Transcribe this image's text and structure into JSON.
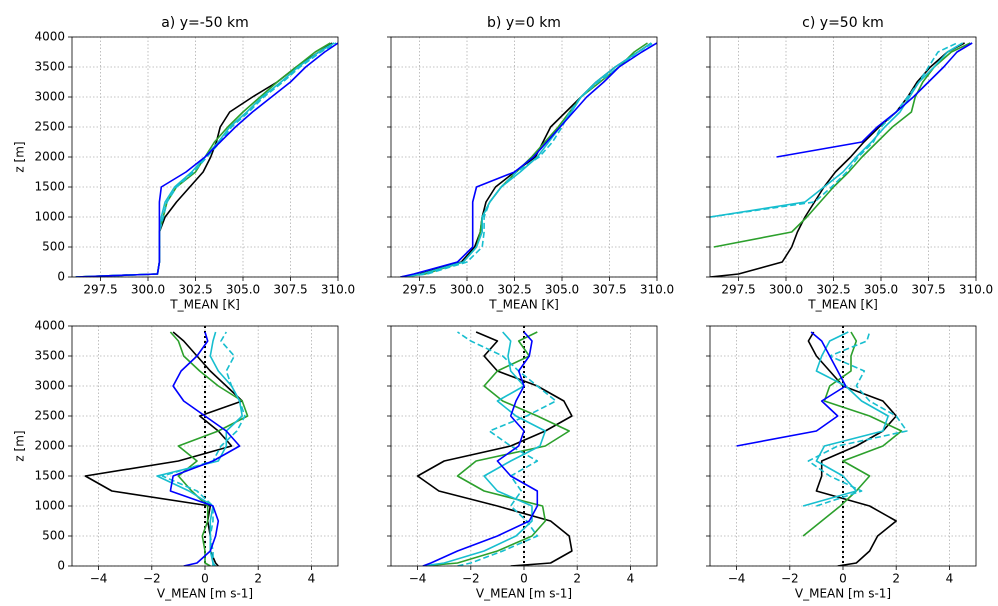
{
  "chart_data": [
    {
      "type": "line",
      "title": "a) y=-50 km",
      "xlabel": "T_MEAN [K]",
      "ylabel": "z [m]",
      "xlim": [
        296,
        310
      ],
      "xticks": [
        297.5,
        {
          "value": 300,
          "label": "300.0"
        },
        302.5,
        {
          "value": 305,
          "label": "305.0"
        },
        307.5,
        {
          "value": 310,
          "label": "310.0"
        }
      ],
      "ylim": [
        0,
        4000
      ],
      "yticks": [
        0,
        500,
        1000,
        1500,
        2000,
        2500,
        3000,
        3500,
        4000
      ],
      "show_ytick_labels": true,
      "grid": true,
      "y": [
        0,
        50,
        250,
        500,
        750,
        1000,
        1250,
        1500,
        1750,
        2000,
        2250,
        2500,
        2750,
        3000,
        3250,
        3500,
        3750,
        3900
      ],
      "series": [
        {
          "color": "#000000",
          "dash": false,
          "values": [
            296.2,
            300.5,
            300.6,
            300.6,
            300.6,
            300.9,
            301.5,
            302.2,
            302.9,
            303.3,
            303.6,
            303.8,
            304.3,
            305.5,
            306.8,
            307.8,
            309.0,
            309.7
          ]
        },
        {
          "color": "#2ca02c",
          "dash": false,
          "values": [
            296.2,
            300.5,
            300.6,
            300.6,
            300.6,
            300.8,
            301.0,
            301.5,
            302.5,
            303.0,
            303.5,
            304.2,
            305.0,
            305.9,
            306.8,
            307.8,
            308.8,
            309.6
          ]
        },
        {
          "color": "#17becf",
          "dash": false,
          "values": [
            296.2,
            300.5,
            300.6,
            300.6,
            300.6,
            300.7,
            300.9,
            301.4,
            302.3,
            303.0,
            303.7,
            304.3,
            305.2,
            306.0,
            307.0,
            307.9,
            309.0,
            309.8
          ]
        },
        {
          "color": "#17becf",
          "dash": true,
          "values": [
            296.2,
            300.5,
            300.6,
            300.6,
            300.6,
            300.8,
            301.0,
            301.5,
            302.4,
            303.1,
            303.8,
            304.4,
            305.3,
            306.1,
            307.1,
            308.0,
            309.1,
            309.9
          ]
        },
        {
          "color": "#0000ff",
          "dash": false,
          "values": [
            296.2,
            300.5,
            300.6,
            300.6,
            300.6,
            300.6,
            300.6,
            300.7,
            302.0,
            303.0,
            303.8,
            304.6,
            305.5,
            306.5,
            307.5,
            308.3,
            309.3,
            310.0
          ]
        }
      ]
    },
    {
      "type": "line",
      "title": "b) y=0 km",
      "xlabel": "T_MEAN [K]",
      "xlim": [
        296,
        310
      ],
      "xticks": [
        297.5,
        {
          "value": 300,
          "label": "300.0"
        },
        302.5,
        {
          "value": 305,
          "label": "305.0"
        },
        307.5,
        {
          "value": 310,
          "label": "310.0"
        }
      ],
      "ylim": [
        0,
        4000
      ],
      "yticks": [
        0,
        500,
        1000,
        1500,
        2000,
        2500,
        3000,
        3500,
        4000
      ],
      "show_ytick_labels": false,
      "grid": true,
      "y": [
        0,
        50,
        250,
        500,
        750,
        1000,
        1250,
        1500,
        1750,
        2000,
        2250,
        2500,
        2750,
        3000,
        3250,
        3500,
        3750,
        3900
      ],
      "series": [
        {
          "color": "#000000",
          "dash": false,
          "values": [
            296.5,
            297.5,
            299.7,
            300.4,
            300.7,
            300.8,
            301.0,
            301.5,
            302.5,
            303.6,
            304.0,
            304.4,
            305.2,
            306.0,
            306.8,
            307.8,
            309.0,
            309.7
          ]
        },
        {
          "color": "#2ca02c",
          "dash": false,
          "values": [
            296.5,
            297.8,
            299.8,
            300.5,
            300.7,
            300.8,
            301.2,
            301.8,
            302.6,
            303.4,
            304.1,
            304.8,
            305.4,
            306.0,
            307.0,
            308.0,
            308.8,
            309.5
          ]
        },
        {
          "color": "#17becf",
          "dash": false,
          "values": [
            296.5,
            297.6,
            299.8,
            300.5,
            300.8,
            300.8,
            301.2,
            301.8,
            302.8,
            303.7,
            304.3,
            304.9,
            305.5,
            306.0,
            306.8,
            307.8,
            309.0,
            309.7
          ]
        },
        {
          "color": "#17becf",
          "dash": true,
          "values": [
            296.5,
            297.9,
            300.0,
            300.8,
            300.9,
            300.9,
            301.2,
            301.8,
            302.6,
            303.8,
            304.5,
            305.0,
            305.4,
            306.0,
            306.9,
            308.0,
            309.0,
            309.8
          ]
        },
        {
          "color": "#0000ff",
          "dash": false,
          "values": [
            296.5,
            297.2,
            299.5,
            300.3,
            300.3,
            300.3,
            300.3,
            300.5,
            302.5,
            303.5,
            304.2,
            304.9,
            305.6,
            306.3,
            307.2,
            308.0,
            309.2,
            310.0
          ]
        }
      ]
    },
    {
      "type": "line",
      "title": "c) y=50 km",
      "xlabel": "T_MEAN [K]",
      "xlim": [
        296,
        310
      ],
      "xticks": [
        297.5,
        {
          "value": 300,
          "label": "300.0"
        },
        302.5,
        {
          "value": 305,
          "label": "305.0"
        },
        307.5,
        {
          "value": 310,
          "label": "310.0"
        }
      ],
      "ylim": [
        0,
        4000
      ],
      "yticks": [
        0,
        500,
        1000,
        1500,
        2000,
        2500,
        3000,
        3500,
        4000
      ],
      "show_ytick_labels": false,
      "grid": true,
      "y": [
        0,
        50,
        250,
        500,
        750,
        1000,
        1250,
        1500,
        1750,
        2000,
        2250,
        2500,
        2750,
        3000,
        3250,
        3500,
        3750,
        3900
      ],
      "series": [
        {
          "color": "#000000",
          "dash": false,
          "values": [
            296.0,
            297.5,
            299.8,
            300.3,
            300.6,
            301.0,
            301.5,
            302.0,
            302.6,
            303.4,
            304.1,
            304.9,
            305.8,
            306.4,
            306.9,
            307.6,
            308.5,
            309.4
          ]
        },
        {
          "color": "#2ca02c",
          "dash": false,
          "values": [
            null,
            null,
            null,
            296.2,
            300.3,
            301.1,
            301.8,
            302.5,
            303.3,
            304.0,
            304.8,
            305.6,
            306.6,
            306.8,
            307.2,
            307.8,
            308.7,
            309.7
          ]
        },
        {
          "color": "#17becf",
          "dash": false,
          "values": [
            null,
            null,
            null,
            null,
            null,
            296.0,
            301.0,
            302.0,
            303.0,
            303.7,
            304.5,
            305.2,
            306.0,
            306.5,
            307.0,
            307.8,
            308.5,
            309.3
          ]
        },
        {
          "color": "#17becf",
          "dash": true,
          "values": [
            null,
            null,
            null,
            null,
            null,
            296.0,
            301.5,
            302.4,
            303.2,
            303.8,
            304.6,
            305.0,
            305.8,
            306.4,
            307.0,
            307.5,
            308.0,
            309.0
          ]
        },
        {
          "color": "#0000ff",
          "dash": false,
          "values": [
            null,
            null,
            null,
            null,
            null,
            null,
            null,
            null,
            null,
            299.5,
            304.0,
            304.8,
            305.8,
            306.7,
            307.5,
            308.3,
            309.0,
            309.8
          ]
        }
      ]
    },
    {
      "type": "line",
      "xlabel": "V_MEAN [m s-1]",
      "ylabel": "z [m]",
      "xlim": [
        -5,
        5
      ],
      "xticks": [
        {
          "value": -4,
          "label": "−4"
        },
        {
          "value": -2,
          "label": "−2"
        },
        0,
        2,
        4
      ],
      "ylim": [
        0,
        4000
      ],
      "yticks": [
        0,
        500,
        1000,
        1500,
        2000,
        2500,
        3000,
        3500,
        4000
      ],
      "show_ytick_labels": true,
      "grid": true,
      "vline": 0,
      "y": [
        0,
        50,
        250,
        500,
        750,
        1000,
        1250,
        1500,
        1750,
        2000,
        2250,
        2500,
        2750,
        3000,
        3250,
        3500,
        3750,
        3900
      ],
      "series": [
        {
          "color": "#000000",
          "dash": false,
          "values": [
            0.5,
            0.4,
            0.2,
            0.2,
            0.1,
            0.2,
            -3.5,
            -4.5,
            -1.0,
            1.0,
            0.5,
            -0.2,
            1.4,
            0.8,
            0.2,
            -0.3,
            -0.8,
            -1.2
          ]
        },
        {
          "color": "#2ca02c",
          "dash": false,
          "values": [
            0.2,
            0,
            0,
            -0.1,
            0.1,
            0.1,
            -0.5,
            -1.0,
            -0.3,
            -1.0,
            0.5,
            1.6,
            1.4,
            0.5,
            -0.2,
            -0.8,
            -1.0,
            -1.3
          ]
        },
        {
          "color": "#17becf",
          "dash": false,
          "values": [
            0.3,
            0.3,
            0.2,
            0.2,
            0.2,
            0.3,
            -0.6,
            -1.8,
            0.5,
            0.8,
            0.8,
            1.4,
            1.3,
            1.0,
            0.5,
            0.2,
            0.3,
            0.4
          ]
        },
        {
          "color": "#17becf",
          "dash": true,
          "values": [
            0.4,
            0.3,
            0.3,
            0.2,
            0.3,
            0.3,
            -0.3,
            -1.6,
            0.3,
            0.6,
            1.2,
            1.5,
            1.3,
            1.0,
            0.8,
            1.1,
            0.6,
            0.8
          ]
        },
        {
          "color": "#0000ff",
          "dash": false,
          "values": [
            -0.8,
            -0.3,
            0.2,
            0.4,
            0.5,
            0.3,
            -1.3,
            -1.2,
            0.3,
            1.3,
            0.8,
            0,
            -0.8,
            -1.2,
            -0.9,
            -0.3,
            0.1,
            0
          ]
        }
      ]
    },
    {
      "type": "line",
      "xlabel": "V_MEAN [m s-1]",
      "xlim": [
        -5,
        5
      ],
      "xticks": [
        {
          "value": -4,
          "label": "−4"
        },
        {
          "value": -2,
          "label": "−2"
        },
        0,
        2,
        4
      ],
      "ylim": [
        0,
        4000
      ],
      "yticks": [
        0,
        500,
        1000,
        1500,
        2000,
        2500,
        3000,
        3500,
        4000
      ],
      "show_ytick_labels": false,
      "grid": true,
      "vline": 0,
      "y": [
        0,
        50,
        250,
        500,
        750,
        1000,
        1250,
        1500,
        1750,
        2000,
        2250,
        2500,
        2750,
        3000,
        3250,
        3500,
        3750,
        3900
      ],
      "series": [
        {
          "color": "#000000",
          "dash": false,
          "values": [
            -0.5,
            1.0,
            1.8,
            1.7,
            1.0,
            -1.0,
            -3.2,
            -4.0,
            -3.0,
            -0.5,
            0.8,
            1.8,
            1.5,
            0.5,
            -1.0,
            -1.5,
            -1.0,
            -1.8
          ]
        },
        {
          "color": "#2ca02c",
          "dash": false,
          "values": [
            -3.8,
            -2.5,
            -1.0,
            0.3,
            0.8,
            0.7,
            -1.5,
            -2.5,
            -1.8,
            0.8,
            1.7,
            0.5,
            -0.8,
            -1.5,
            -1.0,
            0.2,
            -0.2,
            0.5
          ]
        },
        {
          "color": "#17becf",
          "dash": false,
          "values": [
            -3.8,
            -3.0,
            -1.5,
            -0.3,
            0.3,
            0.3,
            -1.0,
            -1.5,
            -0.5,
            0.6,
            0.8,
            -0.3,
            -1.0,
            0,
            -0.5,
            -0.6,
            -0.5,
            -0.8
          ]
        },
        {
          "color": "#17becf",
          "dash": true,
          "values": [
            -2.5,
            -2.0,
            -0.8,
            0.5,
            0.1,
            -0.5,
            -0.1,
            -0.5,
            0.5,
            -0.5,
            -1.3,
            0.1,
            1.2,
            0.5,
            -0.2,
            -0.8,
            -2.0,
            -2.5
          ]
        },
        {
          "color": "#0000ff",
          "dash": false,
          "values": [
            -3.8,
            -3.5,
            -2.5,
            -1.0,
            0.2,
            0.5,
            0.5,
            -0.5,
            -1.0,
            -0.2,
            0,
            -0.5,
            -0.3,
            0,
            -0.2,
            0.2,
            0.3,
            0
          ]
        }
      ]
    },
    {
      "type": "line",
      "xlabel": "V_MEAN [m s-1]",
      "xlim": [
        -5,
        5
      ],
      "xticks": [
        {
          "value": -4,
          "label": "−4"
        },
        {
          "value": -2,
          "label": "−2"
        },
        0,
        2,
        4
      ],
      "ylim": [
        0,
        4000
      ],
      "yticks": [
        0,
        500,
        1000,
        1500,
        2000,
        2500,
        3000,
        3500,
        4000
      ],
      "show_ytick_labels": false,
      "grid": true,
      "vline": 0,
      "y": [
        0,
        50,
        250,
        500,
        750,
        1000,
        1250,
        1500,
        1750,
        2000,
        2250,
        2500,
        2750,
        3000,
        3250,
        3500,
        3750,
        3900
      ],
      "series": [
        {
          "color": "#000000",
          "dash": false,
          "values": [
            -0.2,
            0.5,
            1.0,
            1.3,
            2.0,
            1.0,
            -1.0,
            -0.8,
            -0.8,
            0.5,
            1.5,
            2.0,
            1.5,
            0,
            -0.5,
            -1.0,
            -1.3,
            -1.1
          ]
        },
        {
          "color": "#2ca02c",
          "dash": false,
          "values": [
            null,
            null,
            null,
            -1.5,
            -0.8,
            -0.1,
            0.5,
            1.0,
            0,
            1.5,
            2.2,
            1.0,
            -0.7,
            -0.5,
            0.3,
            0.3,
            0.5,
            0.3
          ]
        },
        {
          "color": "#17becf",
          "dash": false,
          "values": [
            null,
            null,
            null,
            null,
            null,
            -1.5,
            0.5,
            0,
            -1.0,
            -0.7,
            1.5,
            1.7,
            0.7,
            0.1,
            -1.0,
            -0.8,
            -0.5,
            0.2
          ]
        },
        {
          "color": "#17becf",
          "dash": true,
          "values": [
            null,
            null,
            null,
            null,
            null,
            -1.0,
            0.7,
            -0.5,
            -1.3,
            -0.2,
            2.4,
            2.0,
            1.0,
            0.5,
            0.8,
            -0.5,
            0.9,
            1.0
          ]
        },
        {
          "color": "#0000ff",
          "dash": false,
          "values": [
            null,
            null,
            null,
            null,
            null,
            null,
            null,
            null,
            null,
            -4.0,
            -1.0,
            -0.2,
            -0.8,
            0.1,
            -0.2,
            -0.5,
            -0.8,
            -1.2
          ]
        }
      ]
    }
  ]
}
